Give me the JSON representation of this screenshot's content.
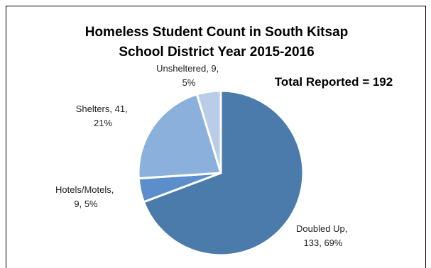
{
  "chart_data": {
    "type": "pie",
    "title": [
      "Homeless Student Count in South Kitsap",
      "School District Year 2015-2016"
    ],
    "annotation": "Total Reported = 192",
    "slices": [
      {
        "name": "Doubled Up",
        "value": 133,
        "percent": "69%",
        "label_lines": [
          "Doubled Up,",
          "133, 69%"
        ],
        "color": "#4a7bab"
      },
      {
        "name": "Hotels/Motels",
        "value": 9,
        "percent": "5%",
        "label_lines": [
          "Hotels/Motels,",
          "9, 5%"
        ],
        "color": "#5a8fcb"
      },
      {
        "name": "Shelters",
        "value": 41,
        "percent": "21%",
        "label_lines": [
          "Shelters, 41,",
          "21%"
        ],
        "color": "#8cb0dc"
      },
      {
        "name": "Unsheltered",
        "value": 9,
        "percent": "5%",
        "label_lines": [
          "Unsheltered, 9,",
          "5%"
        ],
        "color": "#b9cde8"
      }
    ],
    "start_angle_deg": 0,
    "direction": "clockwise",
    "legend": "none"
  }
}
